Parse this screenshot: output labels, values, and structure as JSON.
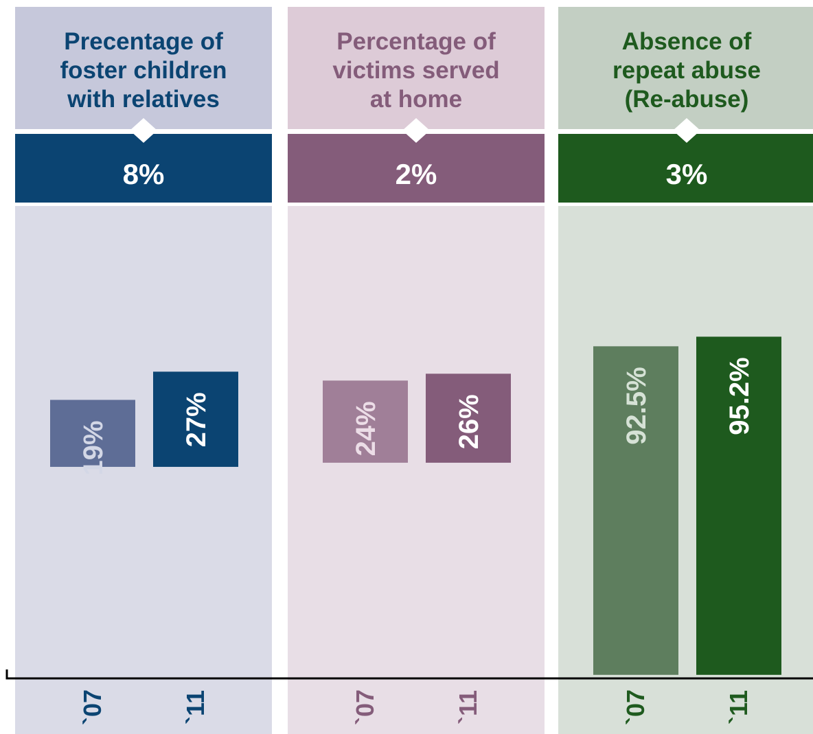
{
  "chart_data": [
    {
      "type": "bar",
      "title": [
        "Precentage of",
        "foster children",
        "with relatives"
      ],
      "change": "8%",
      "categories": [
        "`07",
        "`11"
      ],
      "values": [
        19,
        27
      ],
      "value_labels": [
        "19%",
        "27%"
      ],
      "colors": [
        "#5e6d96",
        "#0b4472"
      ],
      "label_colors": [
        "#d3d7e6",
        "#ffffff"
      ],
      "ylim": [
        -60,
        74
      ],
      "title_color": "#0b4472",
      "header_bg": "#c6c8db",
      "band_color": "#0b4472",
      "panel_bg": "#dadbe7"
    },
    {
      "type": "bar",
      "title": [
        "Percentage of",
        "victims served",
        "at home"
      ],
      "change": "2%",
      "categories": [
        "`07",
        "`11"
      ],
      "values": [
        24,
        26
      ],
      "value_labels": [
        "24%",
        "26%"
      ],
      "colors": [
        "#a07f98",
        "#845c7a"
      ],
      "label_colors": [
        "#ecdde7",
        "#ffffff"
      ],
      "ylim": [
        -63,
        75
      ],
      "title_color": "#845c7a",
      "header_bg": "#ddcbd7",
      "band_color": "#845c7a",
      "panel_bg": "#e8dee6"
    },
    {
      "type": "bar",
      "title": [
        "Absence of",
        "repeat abuse",
        "(Re-abuse)"
      ],
      "change": "3%",
      "categories": [
        "`07",
        "`11"
      ],
      "values": [
        92.5,
        95.2
      ],
      "value_labels": [
        "92.5%",
        "95.2%"
      ],
      "colors": [
        "#5e7e5e",
        "#1e5a1e"
      ],
      "label_colors": [
        "#d6e2d6",
        "#ffffff"
      ],
      "ylim": [
        -1,
        132
      ],
      "title_color": "#1e5a1e",
      "header_bg": "#c3cfc3",
      "band_color": "#1e5a1e",
      "panel_bg": "#d8e0d8"
    }
  ]
}
